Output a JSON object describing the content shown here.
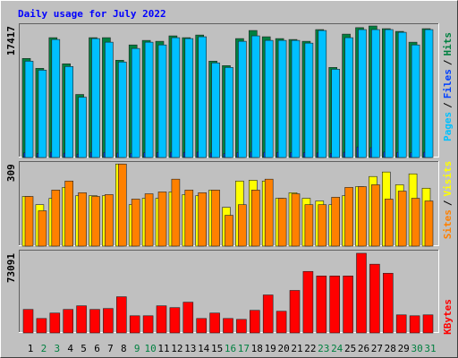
{
  "chart_data": [
    {
      "type": "bar",
      "title": "Daily usage for July 2022",
      "ylim": [
        0,
        17776
      ],
      "yticks": [
        17417
      ],
      "separator": "/",
      "series": [
        {
          "name": "Hits",
          "color": "#008040",
          "values": [
            13120,
            11810,
            15870,
            12410,
            8350,
            15870,
            15870,
            12880,
            14910,
            15510,
            15390,
            16110,
            15870,
            16220,
            12760,
            12170,
            15750,
            16820,
            15990,
            15750,
            15630,
            15390,
            16940,
            11930,
            16340,
            17200,
            17417,
            17060,
            16700,
            15270,
            17060
          ]
        },
        {
          "name": "Files",
          "color": "#0040ff",
          "values": [
            620,
            540,
            700,
            580,
            450,
            690,
            680,
            590,
            560,
            640,
            660,
            700,
            690,
            710,
            600,
            520,
            650,
            720,
            690,
            680,
            670,
            650,
            600,
            560,
            700,
            1400,
            1300,
            720,
            680,
            640,
            700
          ]
        },
        {
          "name": "Pages",
          "color": "#00c0ff",
          "values": [
            12760,
            11570,
            15630,
            12050,
            7990,
            15750,
            15270,
            12650,
            14440,
            15270,
            14910,
            15870,
            15750,
            15990,
            12530,
            11930,
            15390,
            16110,
            15510,
            15510,
            15510,
            15150,
            16820,
            11690,
            15870,
            16940,
            16940,
            16940,
            16580,
            14910,
            16940
          ]
        }
      ]
    },
    {
      "type": "bar",
      "ylim": [
        0,
        320
      ],
      "yticks": [
        309
      ],
      "separator": "/",
      "series": [
        {
          "name": "Visits",
          "color": "#ffff00",
          "values": [
            187,
            156,
            180,
            221,
            190,
            190,
            190,
            309,
            156,
            180,
            180,
            204,
            194,
            190,
            211,
            146,
            245,
            248,
            245,
            180,
            201,
            180,
            170,
            156,
            190,
            224,
            262,
            279,
            231,
            272,
            218
          ]
        },
        {
          "name": "Sites",
          "color": "#ff8000",
          "values": [
            187,
            133,
            211,
            245,
            201,
            187,
            194,
            309,
            177,
            197,
            204,
            252,
            211,
            201,
            211,
            116,
            156,
            211,
            252,
            180,
            197,
            156,
            156,
            184,
            221,
            224,
            231,
            177,
            207,
            180,
            170
          ]
        }
      ]
    },
    {
      "type": "bar",
      "ylim": [
        0,
        76360
      ],
      "yticks": [
        73091
      ],
      "series": [
        {
          "name": "KBytes",
          "color": "#ff0000",
          "values": [
            21580,
            13280,
            18260,
            21580,
            24900,
            21580,
            22410,
            33200,
            15770,
            15770,
            24900,
            23240,
            28220,
            13280,
            18260,
            13280,
            12450,
            20750,
            34860,
            19920,
            39010,
            56440,
            52290,
            52290,
            52290,
            73091,
            63080,
            54780,
            16600,
            15770,
            16600
          ]
        }
      ],
      "categories": [
        "1",
        "2",
        "3",
        "4",
        "5",
        "6",
        "7",
        "8",
        "9",
        "10",
        "11",
        "12",
        "13",
        "14",
        "15",
        "16",
        "17",
        "18",
        "19",
        "20",
        "21",
        "22",
        "23",
        "24",
        "25",
        "26",
        "27",
        "28",
        "29",
        "30",
        "31"
      ],
      "category_colors": [
        "#000000",
        "#008040",
        "#008040",
        "#000000",
        "#000000",
        "#000000",
        "#000000",
        "#000000",
        "#008040",
        "#008040",
        "#000000",
        "#000000",
        "#000000",
        "#000000",
        "#000000",
        "#008040",
        "#008040",
        "#000000",
        "#000000",
        "#000000",
        "#000000",
        "#000000",
        "#008040",
        "#008040",
        "#000000",
        "#000000",
        "#000000",
        "#000000",
        "#000000",
        "#008040",
        "#008040"
      ]
    }
  ]
}
